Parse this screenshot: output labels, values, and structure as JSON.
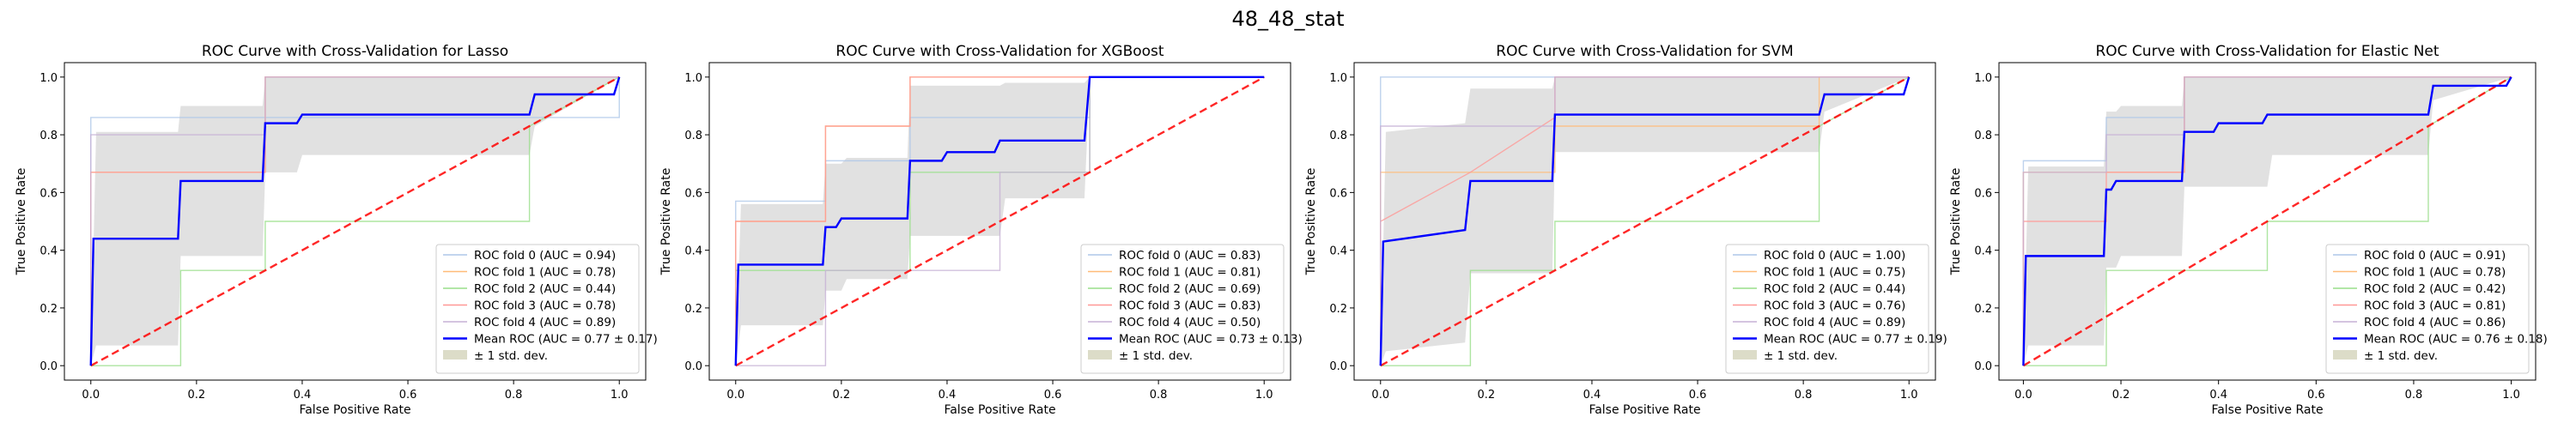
{
  "figure_title": "48_48_stat",
  "colors": {
    "fold0": "#aec7e8",
    "fold1": "#ffbb78",
    "fold2": "#98df8a",
    "fold3": "#ff9896",
    "fold4": "#c5b0d5",
    "mean": "#0000ff",
    "chance": "#ff0000",
    "band": "#c8c8c8",
    "band_legend": "#dcdcc8"
  },
  "chart_data": [
    {
      "type": "line",
      "title": "ROC Curve with Cross-Validation for Lasso",
      "xlabel": "False Positive Rate",
      "ylabel": "True Positive Rate",
      "xlim": [
        -0.05,
        1.05
      ],
      "ylim": [
        -0.05,
        1.05
      ],
      "xticks": [
        "0.0",
        "0.2",
        "0.4",
        "0.6",
        "0.8",
        "1.0"
      ],
      "yticks": [
        "0.0",
        "0.2",
        "0.4",
        "0.6",
        "0.8",
        "1.0"
      ],
      "legend_position": "lower-right",
      "series": [
        {
          "name": "ROC fold 0 (AUC = 0.94)",
          "x": [
            0,
            0,
            1,
            1
          ],
          "y": [
            0,
            0.86,
            0.86,
            1
          ]
        },
        {
          "name": "ROC fold 1 (AUC = 0.78)",
          "x": [
            0,
            0,
            0.33,
            0.33,
            0.83,
            0.83,
            1
          ],
          "y": [
            0,
            0.67,
            0.67,
            1,
            1,
            1,
            1
          ]
        },
        {
          "name": "ROC fold 2 (AUC = 0.44)",
          "x": [
            0,
            0.17,
            0.17,
            0.33,
            0.33,
            0.83,
            0.83,
            1
          ],
          "y": [
            0,
            0,
            0.33,
            0.33,
            0.5,
            0.5,
            0.83,
            1
          ]
        },
        {
          "name": "ROC fold 3 (AUC = 0.78)",
          "x": [
            0,
            0,
            0.33,
            0.33,
            1
          ],
          "y": [
            0,
            0.67,
            0.67,
            1,
            1
          ]
        },
        {
          "name": "ROC fold 4 (AUC = 0.89)",
          "x": [
            0,
            0,
            0.17,
            0.17,
            0.33,
            0.33,
            1
          ],
          "y": [
            0,
            0.8,
            0.8,
            0.8,
            0.8,
            1,
            1
          ]
        },
        {
          "name": "Mean ROC (AUC = 0.77 ± 0.17)",
          "x": [
            0,
            0.005,
            0.165,
            0.17,
            0.325,
            0.33,
            0.39,
            0.4,
            0.83,
            0.84,
            0.99,
            1
          ],
          "y": [
            0,
            0.44,
            0.44,
            0.64,
            0.64,
            0.84,
            0.84,
            0.87,
            0.87,
            0.94,
            0.94,
            1
          ]
        }
      ],
      "std_band": {
        "label": "± 1 std. dev.",
        "x": [
          0,
          0.01,
          0.165,
          0.17,
          0.325,
          0.33,
          0.39,
          0.4,
          0.83,
          0.84,
          1
        ],
        "upper": [
          0,
          0.81,
          0.81,
          0.9,
          0.9,
          1,
          1,
          1,
          1,
          1,
          1
        ],
        "lower": [
          0,
          0.07,
          0.07,
          0.38,
          0.38,
          0.67,
          0.67,
          0.73,
          0.73,
          0.83,
          1
        ]
      }
    },
    {
      "type": "line",
      "title": "ROC Curve with Cross-Validation for XGBoost",
      "xlabel": "False Positive Rate",
      "ylabel": "True Positive Rate",
      "xlim": [
        -0.05,
        1.05
      ],
      "ylim": [
        -0.05,
        1.05
      ],
      "xticks": [
        "0.0",
        "0.2",
        "0.4",
        "0.6",
        "0.8",
        "1.0"
      ],
      "yticks": [
        "0.0",
        "0.2",
        "0.4",
        "0.6",
        "0.8",
        "1.0"
      ],
      "legend_position": "lower-right",
      "series": [
        {
          "name": "ROC fold 0 (AUC = 0.83)",
          "x": [
            0,
            0,
            0.17,
            0.17,
            0.33,
            0.33,
            0.67,
            0.67,
            1
          ],
          "y": [
            0,
            0.57,
            0.57,
            0.71,
            0.71,
            0.86,
            0.86,
            1,
            1
          ]
        },
        {
          "name": "ROC fold 1 (AUC = 0.81)",
          "x": [
            0,
            0,
            0.17,
            0.17,
            0.33,
            0.33,
            1
          ],
          "y": [
            0,
            0.5,
            0.5,
            0.83,
            0.83,
            1,
            1
          ]
        },
        {
          "name": "ROC fold 2 (AUC = 0.69)",
          "x": [
            0,
            0,
            0.33,
            0.33,
            0.67,
            0.67,
            1
          ],
          "y": [
            0,
            0.33,
            0.33,
            0.67,
            0.67,
            1,
            1
          ]
        },
        {
          "name": "ROC fold 3 (AUC = 0.83)",
          "x": [
            0,
            0,
            0.17,
            0.17,
            0.33,
            0.33,
            1
          ],
          "y": [
            0,
            0.5,
            0.5,
            0.83,
            0.83,
            1,
            1
          ]
        },
        {
          "name": "ROC fold 4 (AUC = 0.50)",
          "x": [
            0,
            0.17,
            0.17,
            0.5,
            0.5,
            0.67,
            0.67,
            1
          ],
          "y": [
            0,
            0,
            0.33,
            0.33,
            0.67,
            0.67,
            1,
            1
          ]
        },
        {
          "name": "Mean ROC (AUC = 0.73 ± 0.13)",
          "x": [
            0,
            0.005,
            0.165,
            0.17,
            0.19,
            0.2,
            0.325,
            0.33,
            0.39,
            0.4,
            0.49,
            0.5,
            0.66,
            0.67,
            1
          ],
          "y": [
            0,
            0.35,
            0.35,
            0.48,
            0.48,
            0.51,
            0.51,
            0.71,
            0.71,
            0.74,
            0.74,
            0.78,
            0.78,
            1,
            1
          ]
        }
      ],
      "std_band": {
        "label": "± 1 std. dev.",
        "x": [
          0,
          0.01,
          0.165,
          0.17,
          0.2,
          0.21,
          0.325,
          0.33,
          0.5,
          0.51,
          0.66,
          0.67,
          1
        ],
        "upper": [
          0,
          0.56,
          0.56,
          0.7,
          0.7,
          0.72,
          0.72,
          0.97,
          0.97,
          0.98,
          0.98,
          1,
          1
        ],
        "lower": [
          0,
          0.14,
          0.14,
          0.26,
          0.26,
          0.3,
          0.3,
          0.45,
          0.45,
          0.58,
          0.58,
          1,
          1
        ]
      }
    },
    {
      "type": "line",
      "title": "ROC Curve with Cross-Validation for SVM",
      "xlabel": "False Positive Rate",
      "ylabel": "True Positive Rate",
      "xlim": [
        -0.05,
        1.05
      ],
      "ylim": [
        -0.05,
        1.05
      ],
      "xticks": [
        "0.0",
        "0.2",
        "0.4",
        "0.6",
        "0.8",
        "1.0"
      ],
      "yticks": [
        "0.0",
        "0.2",
        "0.4",
        "0.6",
        "0.8",
        "1.0"
      ],
      "legend_position": "lower-right",
      "series": [
        {
          "name": "ROC fold 0 (AUC = 1.00)",
          "x": [
            0,
            0,
            1
          ],
          "y": [
            0,
            1,
            1
          ]
        },
        {
          "name": "ROC fold 1 (AUC = 0.75)",
          "x": [
            0,
            0,
            0.33,
            0.33,
            0.83,
            0.83,
            1
          ],
          "y": [
            0,
            0.67,
            0.67,
            0.83,
            0.83,
            1,
            1
          ]
        },
        {
          "name": "ROC fold 2 (AUC = 0.44)",
          "x": [
            0,
            0.17,
            0.17,
            0.33,
            0.33,
            0.83,
            0.83,
            1
          ],
          "y": [
            0,
            0,
            0.33,
            0.33,
            0.5,
            0.5,
            0.83,
            1
          ]
        },
        {
          "name": "ROC fold 3 (AUC = 0.76)",
          "x": [
            0,
            0,
            0.17,
            0.33,
            0.33,
            1
          ],
          "y": [
            0,
            0.5,
            0.67,
            0.86,
            1,
            1
          ]
        },
        {
          "name": "ROC fold 4 (AUC = 0.89)",
          "x": [
            0,
            0,
            0.33,
            0.33,
            1
          ],
          "y": [
            0,
            0.83,
            0.83,
            1,
            1
          ]
        },
        {
          "name": "Mean ROC (AUC = 0.77 ± 0.19)",
          "x": [
            0,
            0.005,
            0.16,
            0.17,
            0.325,
            0.33,
            0.83,
            0.84,
            0.99,
            1
          ],
          "y": [
            0,
            0.43,
            0.47,
            0.64,
            0.64,
            0.87,
            0.87,
            0.94,
            0.94,
            1
          ]
        }
      ],
      "std_band": {
        "label": "± 1 std. dev.",
        "x": [
          0,
          0.01,
          0.16,
          0.17,
          0.325,
          0.33,
          0.83,
          0.84,
          1
        ],
        "upper": [
          0,
          0.81,
          0.84,
          0.96,
          0.96,
          1,
          1,
          1,
          1
        ],
        "lower": [
          0,
          0.05,
          0.08,
          0.32,
          0.32,
          0.74,
          0.74,
          0.88,
          1
        ]
      }
    },
    {
      "type": "line",
      "title": "ROC Curve with Cross-Validation for Elastic Net",
      "xlabel": "False Positive Rate",
      "ylabel": "True Positive Rate",
      "xlim": [
        -0.05,
        1.05
      ],
      "ylim": [
        -0.05,
        1.05
      ],
      "xticks": [
        "0.0",
        "0.2",
        "0.4",
        "0.6",
        "0.8",
        "1.0"
      ],
      "yticks": [
        "0.0",
        "0.2",
        "0.4",
        "0.6",
        "0.8",
        "1.0"
      ],
      "legend_position": "lower-right",
      "series": [
        {
          "name": "ROC fold 0 (AUC = 0.91)",
          "x": [
            0,
            0,
            0.17,
            0.17,
            0.33,
            0.33,
            1
          ],
          "y": [
            0,
            0.71,
            0.71,
            0.86,
            0.86,
            1,
            1
          ]
        },
        {
          "name": "ROC fold 1 (AUC = 0.78)",
          "x": [
            0,
            0,
            0.33,
            0.33,
            1
          ],
          "y": [
            0,
            0.67,
            0.67,
            1,
            1
          ]
        },
        {
          "name": "ROC fold 2 (AUC = 0.42)",
          "x": [
            0,
            0.17,
            0.17,
            0.5,
            0.5,
            0.83,
            0.83,
            1
          ],
          "y": [
            0,
            0,
            0.33,
            0.33,
            0.5,
            0.5,
            0.83,
            1
          ]
        },
        {
          "name": "ROC fold 3 (AUC = 0.81)",
          "x": [
            0,
            0,
            0.17,
            0.17,
            0.33,
            0.33,
            1
          ],
          "y": [
            0,
            0.5,
            0.5,
            0.67,
            0.67,
            1,
            1
          ]
        },
        {
          "name": "ROC fold 4 (AUC = 0.86)",
          "x": [
            0,
            0,
            0.17,
            0.17,
            0.33,
            0.33,
            1
          ],
          "y": [
            0,
            0.67,
            0.67,
            0.8,
            0.8,
            1,
            1
          ]
        },
        {
          "name": "Mean ROC (AUC = 0.76 ± 0.18)",
          "x": [
            0,
            0.005,
            0.165,
            0.17,
            0.18,
            0.19,
            0.325,
            0.33,
            0.39,
            0.4,
            0.49,
            0.5,
            0.83,
            0.84,
            0.99,
            1
          ],
          "y": [
            0,
            0.38,
            0.38,
            0.61,
            0.61,
            0.64,
            0.64,
            0.81,
            0.81,
            0.84,
            0.84,
            0.87,
            0.87,
            0.97,
            0.97,
            1
          ]
        }
      ],
      "std_band": {
        "label": "± 1 std. dev.",
        "x": [
          0,
          0.01,
          0.165,
          0.17,
          0.19,
          0.2,
          0.325,
          0.33,
          0.5,
          0.51,
          0.83,
          0.84,
          1
        ],
        "upper": [
          0,
          0.69,
          0.69,
          0.88,
          0.88,
          0.9,
          0.9,
          1,
          1,
          1,
          1,
          1,
          1
        ],
        "lower": [
          0,
          0.07,
          0.07,
          0.34,
          0.34,
          0.38,
          0.38,
          0.62,
          0.62,
          0.73,
          0.73,
          0.92,
          1
        ]
      }
    }
  ]
}
